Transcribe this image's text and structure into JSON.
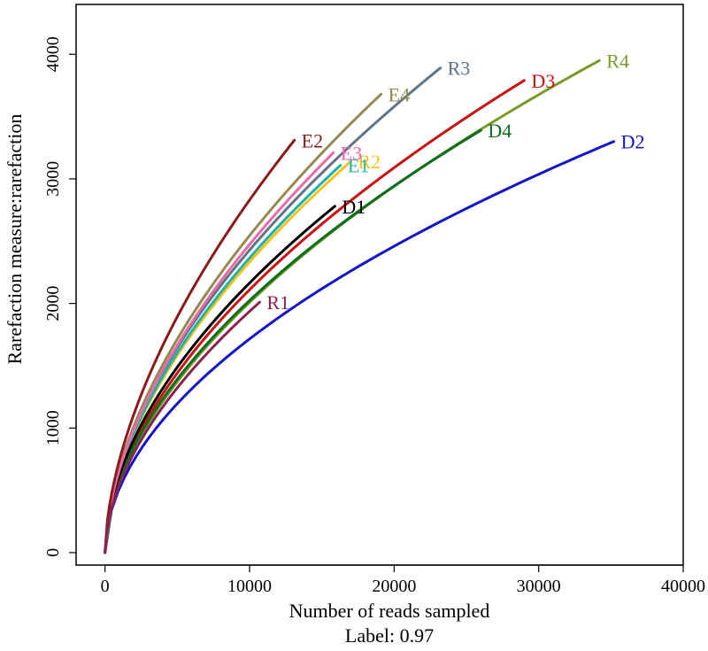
{
  "chart_data": {
    "type": "line",
    "title": "",
    "subtitle": "Label: 0.97",
    "xlabel": "Number of reads sampled",
    "ylabel": "Rarefaction measure:rarefaction",
    "xlim": [
      -2000,
      40000
    ],
    "ylim": [
      -100,
      4400
    ],
    "xticks": [
      0,
      10000,
      20000,
      30000,
      40000
    ],
    "yticks": [
      0,
      1000,
      2000,
      3000,
      4000
    ],
    "grid": false,
    "legend": "none",
    "series": [
      {
        "name": "D2",
        "color": "#1414c8",
        "max_x": 35200,
        "end_y": 3300,
        "curve": 0.52
      },
      {
        "name": "R4",
        "color": "#7a9a28",
        "max_x": 34200,
        "end_y": 3950,
        "curve": 0.55
      },
      {
        "name": "D3",
        "color": "#cc1111",
        "max_x": 29000,
        "end_y": 3790,
        "curve": 0.55
      },
      {
        "name": "D4",
        "color": "#0e6e1e",
        "max_x": 26000,
        "end_y": 3390,
        "curve": 0.54
      },
      {
        "name": "R3",
        "color": "#5f7488",
        "max_x": 23200,
        "end_y": 3890,
        "curve": 0.56
      },
      {
        "name": "E4",
        "color": "#938a52",
        "max_x": 19100,
        "end_y": 3680,
        "curve": 0.57
      },
      {
        "name": "R2",
        "color": "#f2c419",
        "max_x": 17000,
        "end_y": 3140,
        "curve": 0.56
      },
      {
        "name": "E1",
        "color": "#20b2aa",
        "max_x": 16300,
        "end_y": 3110,
        "curve": 0.56
      },
      {
        "name": "D1",
        "color": "#000000",
        "max_x": 15900,
        "end_y": 2780,
        "curve": 0.54
      },
      {
        "name": "E3",
        "color": "#ee6aa7",
        "max_x": 15800,
        "end_y": 3210,
        "curve": 0.57
      },
      {
        "name": "E2",
        "color": "#8b1a1a",
        "max_x": 13100,
        "end_y": 3310,
        "curve": 0.58
      },
      {
        "name": "R1",
        "color": "#8b2252",
        "max_x": 10700,
        "end_y": 2010,
        "curve": 0.55
      }
    ]
  }
}
